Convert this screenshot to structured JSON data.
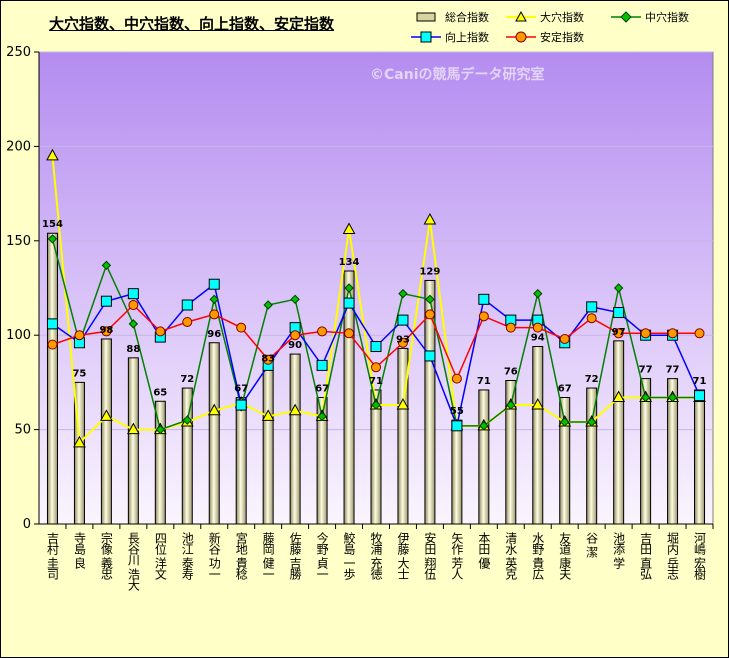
{
  "chart_data": {
    "type": "bar",
    "title": "大穴指数、中穴指数、向上指数、安定指数",
    "watermark": "©Caniの競馬データ研究室",
    "ylim": [
      0,
      250
    ],
    "yticks": [
      "0",
      "50",
      "100",
      "150",
      "200",
      "250"
    ],
    "grid": true,
    "legend_position": "top-right",
    "categories": [
      "吉村 圭司",
      "寺島 良",
      "宗像 義忠",
      "長谷川 浩大",
      "四位 洋文",
      "池江 泰寿",
      "新谷 功一",
      "宮地 貴稔",
      "藤岡 健一",
      "佐藤 吉勝",
      "今野 貞一",
      "鮫島 一歩",
      "牧浦 充徳",
      "伊藤 大士",
      "安田 翔伍",
      "矢作 芳人",
      "本田 優",
      "清水 英克",
      "水野 貴広",
      "友道 康夫",
      "谷 潔",
      "池添 学",
      "吉田 直弘",
      "堀内 岳志",
      "河嶋 宏樹"
    ],
    "series": [
      {
        "name": "総合指数",
        "type": "bar",
        "color": "#d8d4a0",
        "values": [
          154,
          75,
          98,
          88,
          65,
          72,
          96,
          67,
          83,
          90,
          67,
          134,
          71,
          93,
          129,
          55,
          71,
          76,
          94,
          67,
          72,
          97,
          77,
          77,
          71
        ],
        "labels": [
          "154",
          "75",
          "98",
          "88",
          "65",
          "72",
          "96",
          "67",
          "83",
          "90",
          "67",
          "134",
          "71",
          "93",
          "129",
          "55",
          "71",
          "76",
          "94",
          "67",
          "72",
          "97",
          "77",
          "77",
          "71"
        ]
      },
      {
        "name": "大穴指数",
        "type": "line",
        "color": "#ffff00",
        "marker": "triangle",
        "values": [
          195,
          43,
          57,
          50,
          50,
          54,
          60,
          64,
          57,
          60,
          57,
          156,
          63,
          63,
          161,
          52,
          52,
          63,
          63,
          54,
          54,
          67,
          67,
          67,
          67
        ]
      },
      {
        "name": "中穴指数",
        "type": "line",
        "color": "#008000",
        "marker": "diamond",
        "values": [
          151,
          96,
          137,
          106,
          50,
          55,
          119,
          62,
          116,
          119,
          57,
          125,
          63,
          122,
          119,
          52,
          52,
          63,
          122,
          54,
          54,
          125,
          67,
          67,
          67
        ]
      },
      {
        "name": "向上指数",
        "type": "line",
        "color": "#0000ff",
        "marker": "square",
        "values": [
          106,
          96,
          118,
          122,
          99,
          116,
          127,
          63,
          84,
          104,
          84,
          117,
          94,
          108,
          89,
          52,
          119,
          108,
          108,
          96,
          115,
          112,
          100,
          100,
          68
        ]
      },
      {
        "name": "安定指数",
        "type": "line",
        "color": "#ff0000",
        "marker": "circle",
        "values": [
          95,
          100,
          102,
          116,
          102,
          107,
          111,
          104,
          87,
          100,
          102,
          101,
          83,
          96,
          111,
          77,
          110,
          104,
          104,
          98,
          109,
          101,
          101,
          101,
          101
        ]
      }
    ]
  }
}
